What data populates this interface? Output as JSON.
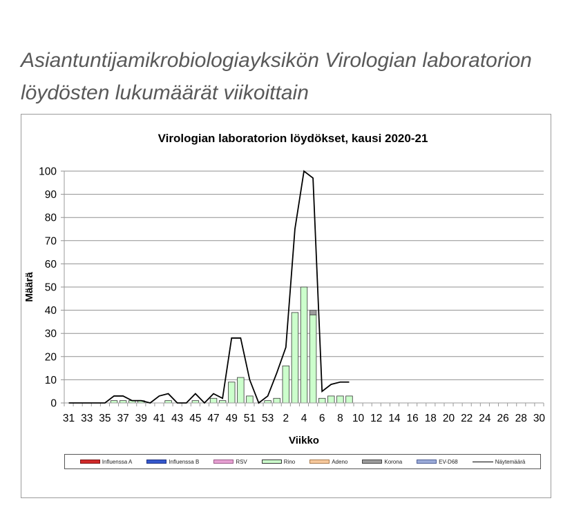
{
  "page": {
    "heading_line1": "Asiantuntijamikrobiologiayksikön Virologian laboratorion",
    "heading_line2": "löydösten lukumäärät viikoittain"
  },
  "chart_data": {
    "type": "bar",
    "title": "Virologian laboratorion löydökset, kausi 2020-21",
    "xlabel": "Viikko",
    "ylabel": "Määrä",
    "ylim": [
      0,
      100
    ],
    "yticks": [
      0,
      10,
      20,
      30,
      40,
      50,
      60,
      70,
      80,
      90,
      100
    ],
    "grid": true,
    "legend_position": "bottom",
    "stacked": true,
    "categories": [
      "31",
      "32",
      "33",
      "34",
      "35",
      "36",
      "37",
      "38",
      "39",
      "40",
      "41",
      "42",
      "43",
      "44",
      "45",
      "46",
      "47",
      "48",
      "49",
      "50",
      "51",
      "52",
      "53",
      "1",
      "2",
      "3",
      "4",
      "5",
      "6",
      "7",
      "8",
      "9",
      "10",
      "11",
      "12",
      "13",
      "14",
      "15",
      "16",
      "17",
      "18",
      "19",
      "20",
      "21",
      "22",
      "23",
      "24",
      "25",
      "26",
      "27",
      "28",
      "29",
      "30"
    ],
    "x_tick_labels": [
      "31",
      "33",
      "35",
      "37",
      "39",
      "41",
      "43",
      "45",
      "47",
      "49",
      "51",
      "53",
      "2",
      "4",
      "6",
      "8",
      "10",
      "12",
      "14",
      "16",
      "18",
      "20",
      "22",
      "24",
      "26",
      "28",
      "30"
    ],
    "series": [
      {
        "name": "Influenssa A",
        "type": "bar",
        "color": "#d02a2a",
        "stroke": "#7a1414",
        "values": [
          0,
          0,
          0,
          0,
          0,
          0,
          0,
          0,
          0,
          0,
          0,
          0,
          0,
          0,
          0,
          0,
          0,
          0,
          0,
          0,
          0,
          0,
          0,
          0,
          0,
          0,
          0,
          0,
          0,
          0,
          0,
          0,
          null,
          null,
          null,
          null,
          null,
          null,
          null,
          null,
          null,
          null,
          null,
          null,
          null,
          null,
          null,
          null,
          null,
          null,
          null,
          null,
          null
        ]
      },
      {
        "name": "Influenssa B",
        "type": "bar",
        "color": "#3558cc",
        "stroke": "#1d2f80",
        "values": [
          0,
          0,
          0,
          0,
          0,
          0,
          0,
          0,
          0,
          0,
          0,
          0,
          0,
          0,
          0,
          0,
          0,
          0,
          0,
          0,
          0,
          0,
          0,
          0,
          0,
          0,
          0,
          0,
          0,
          0,
          0,
          0,
          null,
          null,
          null,
          null,
          null,
          null,
          null,
          null,
          null,
          null,
          null,
          null,
          null,
          null,
          null,
          null,
          null,
          null,
          null,
          null,
          null
        ]
      },
      {
        "name": "RSV",
        "type": "bar",
        "color": "#e6a0d2",
        "stroke": "#9a5a88",
        "values": [
          0,
          0,
          0,
          0,
          0,
          0,
          0,
          0,
          0,
          0,
          0,
          0,
          0,
          0,
          0,
          0,
          0,
          0,
          0,
          0,
          0,
          0,
          0,
          0,
          0,
          0,
          0,
          0,
          0,
          0,
          0,
          0,
          null,
          null,
          null,
          null,
          null,
          null,
          null,
          null,
          null,
          null,
          null,
          null,
          null,
          null,
          null,
          null,
          null,
          null,
          null,
          null,
          null
        ]
      },
      {
        "name": "Rino",
        "type": "bar",
        "color": "#ccffcc",
        "stroke": "#333333",
        "values": [
          0,
          0,
          0,
          0,
          0,
          1,
          1,
          1,
          1,
          0,
          0,
          1,
          0,
          0,
          1,
          0,
          2,
          1,
          9,
          11,
          3,
          0,
          1,
          2,
          16,
          39,
          50,
          38,
          2,
          3,
          3,
          3,
          null,
          null,
          null,
          null,
          null,
          null,
          null,
          null,
          null,
          null,
          null,
          null,
          null,
          null,
          null,
          null,
          null,
          null,
          null,
          null,
          null
        ]
      },
      {
        "name": "Adeno",
        "type": "bar",
        "color": "#f6c89c",
        "stroke": "#a87a4c",
        "values": [
          0,
          0,
          0,
          0,
          0,
          0,
          0,
          0,
          0,
          0,
          0,
          0,
          0,
          0,
          0,
          0,
          0,
          0,
          0,
          0,
          0,
          0,
          0,
          0,
          0,
          0,
          0,
          0,
          0,
          0,
          0,
          0,
          null,
          null,
          null,
          null,
          null,
          null,
          null,
          null,
          null,
          null,
          null,
          null,
          null,
          null,
          null,
          null,
          null,
          null,
          null,
          null,
          null
        ]
      },
      {
        "name": "Korona",
        "type": "bar",
        "color": "#9c9c9c",
        "stroke": "#444444",
        "values": [
          0,
          0,
          0,
          0,
          0,
          0,
          0,
          0,
          0,
          0,
          0,
          0,
          0,
          0,
          0,
          0,
          0,
          0,
          0,
          0,
          0,
          0,
          0,
          0,
          0,
          0,
          0,
          2,
          0,
          0,
          0,
          0,
          null,
          null,
          null,
          null,
          null,
          null,
          null,
          null,
          null,
          null,
          null,
          null,
          null,
          null,
          null,
          null,
          null,
          null,
          null,
          null,
          null
        ]
      },
      {
        "name": "EV-D68",
        "type": "bar",
        "color": "#9aaad8",
        "stroke": "#4d5d94",
        "values": [
          0,
          0,
          0,
          0,
          0,
          0,
          0,
          0,
          0,
          0,
          0,
          0,
          0,
          0,
          0,
          0,
          0,
          0,
          0,
          0,
          0,
          0,
          0,
          0,
          0,
          0,
          0,
          0,
          0,
          0,
          0,
          0,
          null,
          null,
          null,
          null,
          null,
          null,
          null,
          null,
          null,
          null,
          null,
          null,
          null,
          null,
          null,
          null,
          null,
          null,
          null,
          null,
          null
        ]
      },
      {
        "name": "Näytemäärä",
        "type": "line",
        "color": "#000000",
        "stroke": "#000000",
        "values": [
          0,
          0,
          0,
          0,
          0,
          3,
          3,
          1,
          1,
          0,
          3,
          4,
          0,
          0,
          4,
          0,
          4,
          2,
          28,
          28,
          10,
          0,
          3,
          13,
          24,
          75,
          100,
          97,
          5,
          8,
          9,
          9,
          null,
          null,
          null,
          null,
          null,
          null,
          null,
          null,
          null,
          null,
          null,
          null,
          null,
          null,
          null,
          null,
          null,
          null,
          null,
          null,
          null
        ]
      }
    ]
  }
}
